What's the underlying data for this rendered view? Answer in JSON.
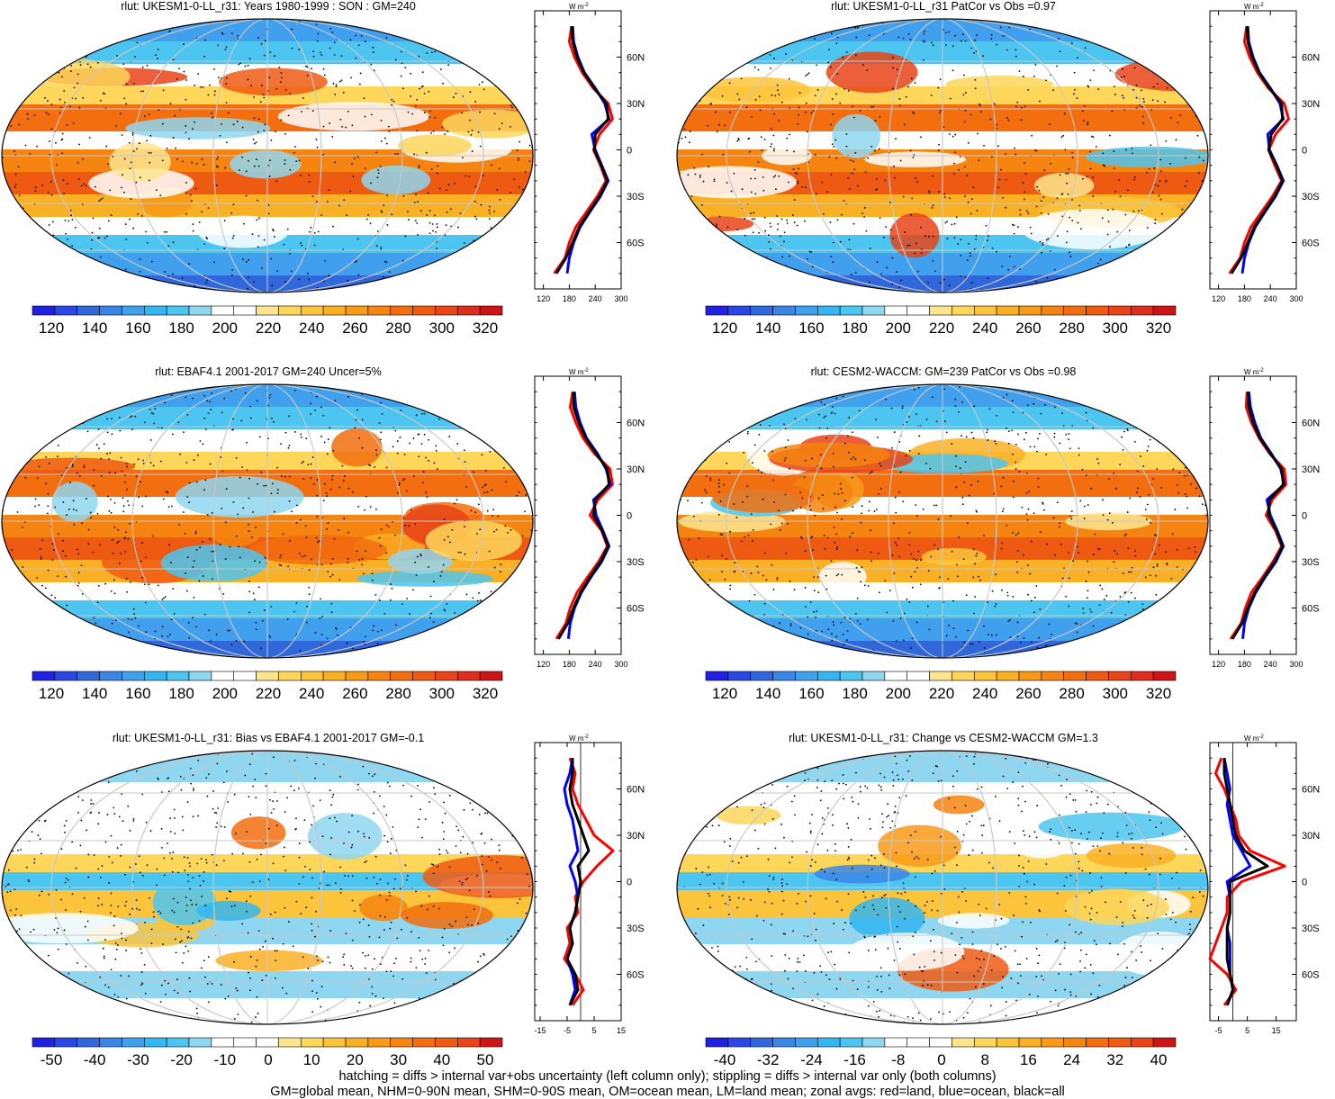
{
  "colors": {
    "abs_scale": [
      "#2020e0",
      "#2c48e4",
      "#3068dc",
      "#3a86e6",
      "#40a0ee",
      "#33b6f2",
      "#4cc6f0",
      "#8fd6f0",
      "#ffffff",
      "#ffffff",
      "#fde58e",
      "#fdd65a",
      "#fcc43a",
      "#fab024",
      "#f89a18",
      "#f58410",
      "#f26e0e",
      "#ee5a12",
      "#e84418",
      "#e02c1c",
      "#cc1414"
    ],
    "diff_scale": [
      "#2020e0",
      "#2c48e4",
      "#3068dc",
      "#3a86e6",
      "#40a0ee",
      "#33b6f2",
      "#4cc6f0",
      "#8fd6f0",
      "#ffffff",
      "#ffffff",
      "#ffffff",
      "#fde58e",
      "#fdd65a",
      "#fcc43a",
      "#fab024",
      "#f89a18",
      "#f58410",
      "#f26e0e",
      "#ee5a12",
      "#e84418",
      "#cc1414"
    ],
    "zonal_land": "#ff0000",
    "zonal_ocean": "#0000ff",
    "zonal_all": "#000000"
  },
  "panels": [
    {
      "title": "rlut: UKESM1-0-LL_r31: Years 1980-1999 : SON : GM=240",
      "scale": "abs",
      "colorbar_labels": [
        "120",
        "140",
        "160",
        "180",
        "200",
        "220",
        "240",
        "260",
        "280",
        "300",
        "320"
      ],
      "zonal_unit": "W m",
      "zonal_unit_exp": "-2",
      "zonal_xticks": [
        "120",
        "180",
        "240",
        "300"
      ],
      "zonal_yticks": [
        "60N",
        "30N",
        "0",
        "30S",
        "60S"
      ],
      "zonal_data": {
        "lat": [
          80,
          70,
          60,
          50,
          40,
          30,
          20,
          10,
          0,
          -10,
          -20,
          -30,
          -40,
          -50,
          -60,
          -70,
          -80
        ],
        "land": [
          185,
          180,
          192,
          210,
          235,
          270,
          280,
          250,
          236,
          252,
          265,
          245,
          220,
          195,
          180,
          170,
          145
        ],
        "ocean": [
          188,
          190,
          200,
          215,
          240,
          262,
          272,
          232,
          240,
          255,
          270,
          252,
          228,
          205,
          190,
          180,
          175
        ],
        "all": [
          186,
          188,
          198,
          214,
          238,
          266,
          270,
          240,
          238,
          254,
          268,
          250,
          226,
          203,
          188,
          172,
          150
        ]
      }
    },
    {
      "title": "rlut: UKESM1-0-LL_r31 PatCor vs Obs =0.97",
      "scale": "abs",
      "colorbar_labels": [
        "120",
        "140",
        "160",
        "180",
        "200",
        "220",
        "240",
        "260",
        "280",
        "300",
        "320"
      ],
      "zonal_unit": "W m",
      "zonal_unit_exp": "-2",
      "zonal_xticks": [
        "120",
        "180",
        "240",
        "300"
      ],
      "zonal_yticks": [
        "60N",
        "30N",
        "0",
        "30S",
        "60S"
      ],
      "zonal_data": {
        "lat": [
          80,
          70,
          60,
          50,
          40,
          30,
          20,
          10,
          0,
          -10,
          -20,
          -30,
          -40,
          -50,
          -60,
          -70,
          -80
        ],
        "land": [
          185,
          180,
          192,
          210,
          235,
          272,
          282,
          252,
          236,
          250,
          266,
          245,
          220,
          195,
          180,
          170,
          145
        ],
        "ocean": [
          188,
          190,
          200,
          215,
          240,
          262,
          270,
          234,
          238,
          255,
          270,
          252,
          228,
          205,
          190,
          180,
          175
        ],
        "all": [
          186,
          188,
          198,
          214,
          238,
          266,
          268,
          242,
          236,
          254,
          268,
          250,
          226,
          203,
          188,
          172,
          150
        ]
      }
    },
    {
      "title": "rlut: EBAF4.1 2001-2017 GM=240 Uncer=5%",
      "scale": "abs",
      "colorbar_labels": [
        "120",
        "140",
        "160",
        "180",
        "200",
        "220",
        "240",
        "260",
        "280",
        "300",
        "320"
      ],
      "zonal_unit": "W m",
      "zonal_unit_exp": "-2",
      "zonal_xticks": [
        "120",
        "180",
        "240",
        "300"
      ],
      "zonal_yticks": [
        "60N",
        "30N",
        "0",
        "30S",
        "60S"
      ],
      "zonal_data": {
        "lat": [
          80,
          70,
          60,
          50,
          40,
          30,
          20,
          10,
          0,
          -10,
          -20,
          -30,
          -40,
          -50,
          -60,
          -70,
          -80
        ],
        "land": [
          188,
          182,
          195,
          212,
          238,
          274,
          280,
          246,
          228,
          255,
          268,
          248,
          222,
          198,
          182,
          172,
          150
        ],
        "ocean": [
          192,
          195,
          205,
          220,
          245,
          265,
          275,
          236,
          242,
          258,
          272,
          255,
          230,
          208,
          192,
          182,
          178
        ],
        "all": [
          190,
          190,
          202,
          218,
          242,
          268,
          272,
          240,
          236,
          256,
          270,
          252,
          228,
          206,
          190,
          176,
          155
        ]
      }
    },
    {
      "title": "rlut: CESM2-WACCM: GM=239 PatCor vs Obs =0.98",
      "scale": "abs",
      "colorbar_labels": [
        "120",
        "140",
        "160",
        "180",
        "200",
        "220",
        "240",
        "260",
        "280",
        "300",
        "320"
      ],
      "zonal_unit": "W m",
      "zonal_unit_exp": "-2",
      "zonal_xticks": [
        "120",
        "180",
        "240",
        "300"
      ],
      "zonal_yticks": [
        "60N",
        "30N",
        "0",
        "30S",
        "60S"
      ],
      "zonal_data": {
        "lat": [
          80,
          70,
          60,
          50,
          40,
          30,
          20,
          10,
          0,
          -10,
          -20,
          -30,
          -40,
          -50,
          -60,
          -70,
          -80
        ],
        "land": [
          186,
          184,
          196,
          214,
          238,
          272,
          276,
          244,
          230,
          252,
          266,
          246,
          222,
          196,
          182,
          172,
          148
        ],
        "ocean": [
          190,
          194,
          204,
          218,
          242,
          264,
          272,
          232,
          240,
          256,
          270,
          253,
          228,
          206,
          190,
          180,
          176
        ],
        "all": [
          188,
          190,
          200,
          216,
          240,
          266,
          270,
          238,
          236,
          254,
          268,
          250,
          226,
          204,
          188,
          174,
          152
        ]
      }
    },
    {
      "title": "rlut: UKESM1-0-LL_r31: Bias vs EBAF4.1 2001-2017  GM=-0.1",
      "scale": "diff",
      "colorbar_labels": [
        "-50",
        "-40",
        "-30",
        "-20",
        "-10",
        "0",
        "10",
        "20",
        "30",
        "40",
        "50"
      ],
      "zonal_unit": "W m",
      "zonal_unit_exp": "-2",
      "zonal_xticks": [
        "-15",
        "-5",
        "5",
        "15"
      ],
      "zonal_yticks": [
        "60N",
        "30N",
        "0",
        "30S",
        "60S"
      ],
      "zonal_data": {
        "lat": [
          80,
          70,
          60,
          50,
          40,
          30,
          20,
          10,
          0,
          -10,
          -20,
          -30,
          -40,
          -50,
          -60,
          -70,
          -80
        ],
        "land": [
          -4,
          -2,
          -3,
          -1,
          2,
          5,
          12,
          6,
          1,
          -2,
          -1,
          -5,
          -4,
          -6,
          -2,
          1,
          -3
        ],
        "ocean": [
          -3,
          -4,
          -6,
          -5,
          -3,
          -2,
          -1,
          -4,
          -2,
          -1,
          -2,
          -4,
          -3,
          -5,
          -3,
          -2,
          -4
        ],
        "all": [
          -3,
          -3,
          -4,
          -3,
          -1,
          1,
          3,
          -1,
          0,
          -1,
          -2,
          -4,
          -3,
          -5,
          -2,
          -1,
          -4
        ]
      }
    },
    {
      "title": "rlut: UKESM1-0-LL_r31: Change vs CESM2-WACCM GM=1.3",
      "scale": "diff",
      "colorbar_labels": [
        "-40",
        "-32",
        "-24",
        "-16",
        "-8",
        "0",
        "8",
        "16",
        "24",
        "32",
        "40"
      ],
      "zonal_unit": "W m",
      "zonal_unit_exp": "-2",
      "zonal_xticks": [
        "-5",
        "5",
        "15"
      ],
      "zonal_yticks": [
        "60N",
        "30N",
        "0",
        "30S",
        "60S"
      ],
      "zonal_data": {
        "lat": [
          80,
          70,
          60,
          50,
          40,
          30,
          20,
          10,
          0,
          -10,
          -20,
          -30,
          -40,
          -50,
          -60,
          -70,
          -80
        ],
        "land": [
          -4,
          -6,
          -3,
          -1,
          1,
          2,
          6,
          18,
          3,
          -2,
          -2,
          -4,
          -6,
          -8,
          -2,
          1,
          -3
        ],
        "ocean": [
          -3,
          -2,
          -1,
          -2,
          -1,
          0,
          3,
          6,
          -2,
          -1,
          -1,
          -2,
          -1,
          -1,
          -1,
          0,
          -2
        ],
        "all": [
          -3,
          -3,
          -2,
          -1,
          0,
          1,
          4,
          12,
          -1,
          -1,
          -1,
          -2,
          -2,
          -2,
          -1,
          0,
          -2
        ]
      }
    }
  ],
  "footer": {
    "line1": "hatching = diffs > internal var+obs uncertainty (left column only); stippling = diffs > internal var only (both columns)",
    "line2": "GM=global mean, NHM=0-90N mean, SHM=0-90S mean, OM=ocean mean, LM=land mean; zonal avgs: red=land, blue=ocean, black=all"
  },
  "chart_data": [
    {
      "type": "line",
      "title": "rlut: UKESM1-0-LL_r31: Years 1980-1999 : SON : GM=240",
      "xlabel": "W m-2",
      "ylabel": "",
      "x_ticks": [
        "120",
        "180",
        "240",
        "300"
      ],
      "y_ticks": [
        "60N",
        "30N",
        "0",
        "30S",
        "60S"
      ],
      "series": [
        {
          "name": "land"
        },
        {
          "name": "ocean"
        },
        {
          "name": "all"
        }
      ]
    },
    {
      "type": "line",
      "title": "rlut: UKESM1-0-LL_r31 PatCor vs Obs =0.97",
      "xlabel": "W m-2",
      "x_ticks": [
        "120",
        "180",
        "240",
        "300"
      ],
      "y_ticks": [
        "60N",
        "30N",
        "0",
        "30S",
        "60S"
      ]
    },
    {
      "type": "line",
      "title": "rlut: EBAF4.1 2001-2017 GM=240 Uncer=5%",
      "xlabel": "W m-2",
      "x_ticks": [
        "120",
        "180",
        "240",
        "300"
      ],
      "y_ticks": [
        "60N",
        "30N",
        "0",
        "30S",
        "60S"
      ]
    },
    {
      "type": "line",
      "title": "rlut: CESM2-WACCM: GM=239 PatCor vs Obs =0.98",
      "xlabel": "W m-2",
      "x_ticks": [
        "120",
        "180",
        "240",
        "300"
      ],
      "y_ticks": [
        "60N",
        "30N",
        "0",
        "30S",
        "60S"
      ]
    },
    {
      "type": "line",
      "title": "rlut: UKESM1-0-LL_r31: Bias vs EBAF4.1 2001-2017  GM=-0.1",
      "xlabel": "W m-2",
      "x_ticks": [
        "-15",
        "-5",
        "5",
        "15"
      ],
      "y_ticks": [
        "60N",
        "30N",
        "0",
        "30S",
        "60S"
      ]
    },
    {
      "type": "line",
      "title": "rlut: UKESM1-0-LL_r31: Change vs CESM2-WACCM GM=1.3",
      "xlabel": "W m-2",
      "x_ticks": [
        "-5",
        "5",
        "15"
      ],
      "y_ticks": [
        "60N",
        "30N",
        "0",
        "30S",
        "60S"
      ]
    }
  ]
}
